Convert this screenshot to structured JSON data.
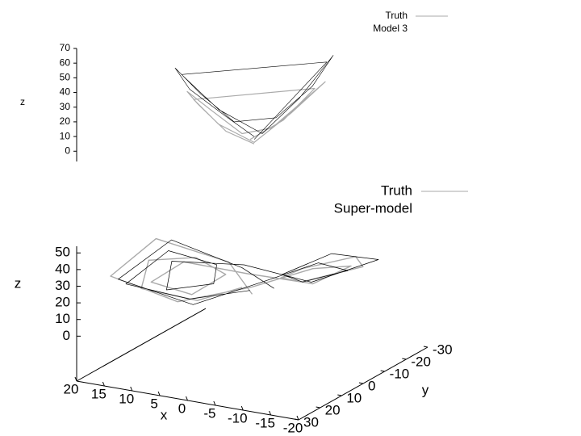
{
  "chart_data": [
    {
      "type": "line3d",
      "zlabel": "z",
      "zlim": [
        -7,
        70
      ],
      "zticks": [
        0,
        10,
        20,
        30,
        40,
        50,
        60,
        70
      ],
      "series": [
        {
          "name": "Truth",
          "color": "#aaaaaa",
          "x": [
            0,
            8,
            16,
            19,
            12,
            3,
            -5,
            -15,
            -20,
            -10,
            0,
            10,
            17,
            -17,
            -8,
            1
          ],
          "y": [
            0,
            5,
            10,
            12,
            5,
            0,
            -3,
            -8,
            -12,
            -4,
            0,
            6,
            10,
            -10,
            -4,
            0
          ],
          "z": [
            5,
            15,
            35,
            44,
            30,
            12,
            15,
            35,
            44,
            25,
            6,
            20,
            38,
            40,
            20,
            8
          ]
        },
        {
          "name": "Model 3",
          "color": "#000000",
          "x": [
            0,
            8,
            18,
            22,
            14,
            5,
            -6,
            -16,
            -22,
            -12,
            -2,
            10,
            20,
            -20,
            -8,
            0
          ],
          "y": [
            0,
            5,
            10,
            12,
            4,
            0,
            -3,
            -8,
            -12,
            -4,
            0,
            6,
            10,
            -10,
            -4,
            0
          ],
          "z": [
            10,
            25,
            45,
            60,
            40,
            20,
            22,
            42,
            62,
            35,
            12,
            30,
            55,
            58,
            28,
            8
          ]
        }
      ]
    },
    {
      "type": "line3d",
      "xlabel": "x",
      "ylabel": "y",
      "zlabel": "z",
      "xlim": [
        -20,
        20
      ],
      "xticks": [
        20,
        15,
        10,
        5,
        0,
        -5,
        -10,
        -15,
        -20
      ],
      "ylim": [
        -30,
        30
      ],
      "yticks": [
        30,
        20,
        10,
        0,
        -10,
        -20,
        -30
      ],
      "zlim": [
        -27,
        54
      ],
      "zticks": [
        0,
        10,
        20,
        30,
        40,
        50
      ],
      "series": [
        {
          "name": "Truth",
          "color": "#aaaaaa",
          "x": [
            1,
            6,
            13,
            14,
            9,
            4,
            7,
            12,
            10,
            2,
            -5,
            -13,
            -14,
            -8,
            -4,
            -7,
            -12,
            -9,
            -1,
            8,
            17,
            15,
            5,
            0
          ],
          "y": [
            2,
            10,
            18,
            12,
            3,
            2,
            10,
            16,
            6,
            -3,
            -10,
            -18,
            -12,
            -3,
            -3,
            -10,
            -15,
            -5,
            3,
            14,
            22,
            6,
            -2,
            0
          ],
          "z": [
            20,
            15,
            24,
            36,
            34,
            26,
            18,
            27,
            33,
            24,
            18,
            26,
            37,
            33,
            25,
            18,
            28,
            32,
            22,
            16,
            32,
            44,
            30,
            15
          ]
        },
        {
          "name": "Super-model",
          "color": "#000000",
          "x": [
            0,
            7,
            15,
            12,
            6,
            5,
            10,
            11,
            3,
            -6,
            -15,
            -12,
            -5,
            -6,
            -11,
            -10,
            -3,
            6,
            16,
            13,
            3,
            -2
          ],
          "y": [
            1,
            11,
            20,
            8,
            1,
            5,
            14,
            9,
            -4,
            -12,
            -20,
            -6,
            -1,
            -8,
            -16,
            -5,
            2,
            12,
            21,
            4,
            -3,
            -5
          ],
          "z": [
            18,
            16,
            27,
            40,
            30,
            22,
            22,
            35,
            28,
            17,
            30,
            42,
            29,
            20,
            24,
            36,
            26,
            14,
            30,
            43,
            27,
            16
          ]
        }
      ]
    }
  ]
}
